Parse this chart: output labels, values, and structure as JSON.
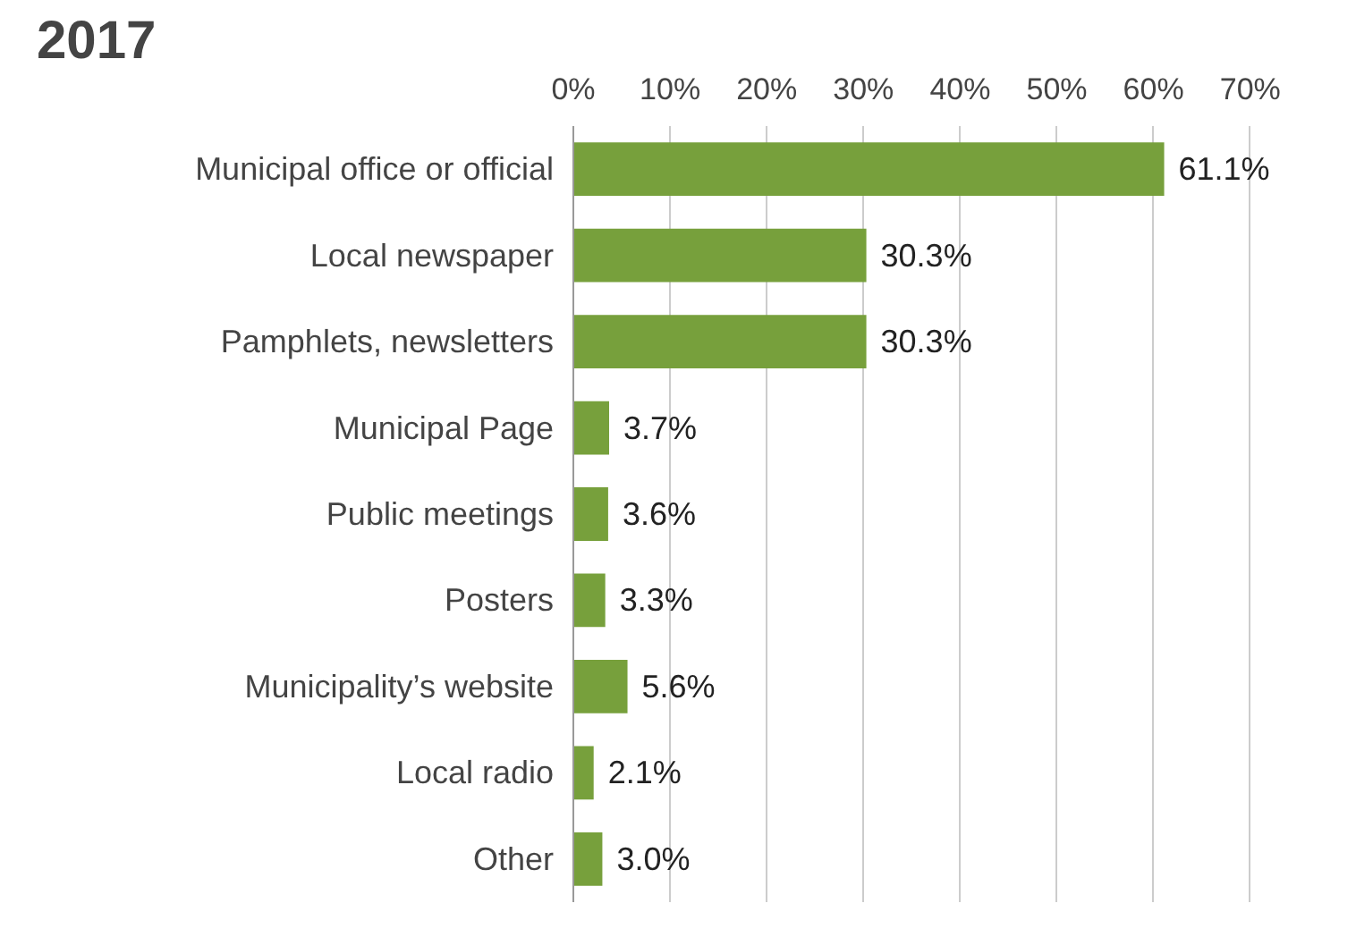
{
  "chart_data": {
    "type": "bar",
    "orientation": "horizontal",
    "title": "2017",
    "categories": [
      "Municipal office or official",
      "Local newspaper",
      "Pamphlets, newsletters",
      "Municipal Page",
      "Public meetings",
      "Posters",
      "Municipality’s website",
      "Local radio",
      "Other"
    ],
    "values": [
      61.1,
      30.3,
      30.3,
      3.7,
      3.6,
      3.3,
      5.6,
      2.1,
      3.0
    ],
    "value_labels": [
      "61.1%",
      "30.3%",
      "30.3%",
      "3.7%",
      "3.6%",
      "3.3%",
      "5.6%",
      "2.1%",
      "3.0%"
    ],
    "color": "#77a03c",
    "xlim": [
      0,
      70
    ],
    "xticks": [
      {
        "value": 0,
        "label": "0%"
      },
      {
        "value": 10,
        "label": "10%"
      },
      {
        "value": 20,
        "label": "20%"
      },
      {
        "value": 30,
        "label": "30%"
      },
      {
        "value": 40,
        "label": "40%"
      },
      {
        "value": 50,
        "label": "50%"
      },
      {
        "value": 60,
        "label": "60%"
      },
      {
        "value": 70,
        "label": "70%"
      }
    ],
    "grid": "x"
  }
}
